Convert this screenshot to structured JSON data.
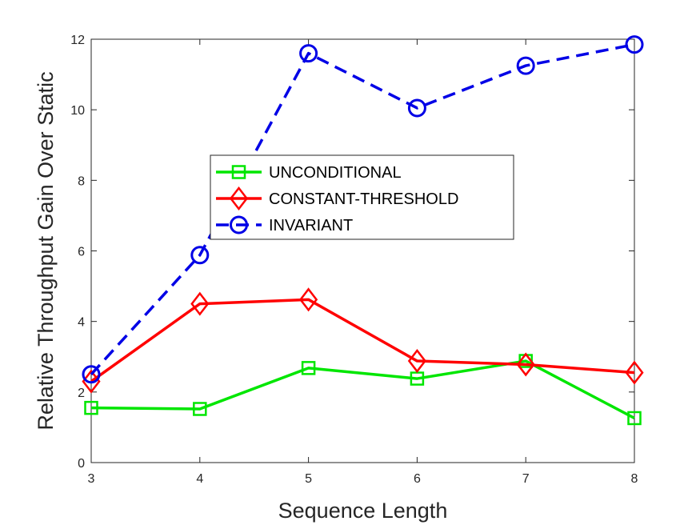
{
  "chart_data": {
    "type": "line",
    "xlabel": "Sequence Length",
    "ylabel": "Relative Throughput Gain Over Static",
    "x": [
      3,
      4,
      5,
      6,
      7,
      8
    ],
    "xlim": [
      3,
      8
    ],
    "ylim": [
      0,
      12
    ],
    "xticks": [
      3,
      4,
      5,
      6,
      7,
      8
    ],
    "yticks": [
      0,
      2,
      4,
      6,
      8,
      10,
      12
    ],
    "grid": false,
    "legend_position": "center",
    "series": [
      {
        "name": "UNCONDITIONAL",
        "color": "#00e600",
        "marker": "square",
        "line_style": "solid",
        "values": [
          1.55,
          1.52,
          2.68,
          2.38,
          2.88,
          1.26
        ]
      },
      {
        "name": "CONSTANT-THRESHOLD",
        "color": "#ff0000",
        "marker": "diamond",
        "line_style": "solid",
        "values": [
          2.3,
          4.5,
          4.62,
          2.88,
          2.78,
          2.55
        ]
      },
      {
        "name": "INVARIANT",
        "color": "#0000e6",
        "marker": "circle",
        "line_style": "dashed",
        "values": [
          2.5,
          5.88,
          11.6,
          10.05,
          11.25,
          11.85
        ]
      }
    ]
  }
}
